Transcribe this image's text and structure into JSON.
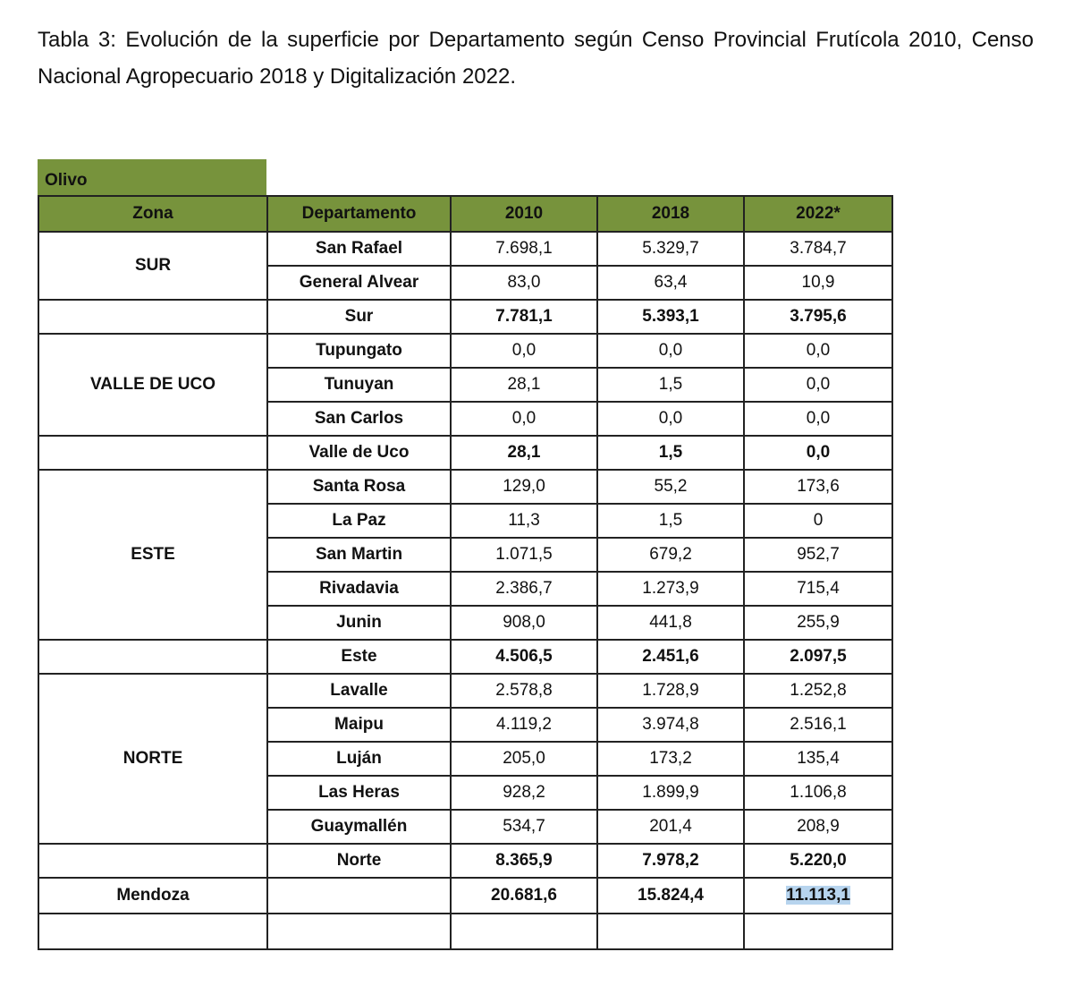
{
  "title": "Tabla 3: Evolución de la superficie por Departamento según Censo Provincial Frutícola 2010, Censo Nacional Agropecuario 2018 y Digitalización 2022.",
  "table": {
    "label": "Olivo",
    "headers": [
      "Zona",
      "Departamento",
      "2010",
      "2018",
      "2022*"
    ],
    "zones": [
      {
        "name": "SUR",
        "rows": [
          [
            "San Rafael",
            "7.698,1",
            "5.329,7",
            "3.784,7"
          ],
          [
            "General Alvear",
            "83,0",
            "63,4",
            "10,9"
          ]
        ],
        "subtotal": [
          "Sur",
          "7.781,1",
          "5.393,1",
          "3.795,6"
        ]
      },
      {
        "name": "VALLE DE UCO",
        "rows": [
          [
            "Tupungato",
            "0,0",
            "0,0",
            "0,0"
          ],
          [
            "Tunuyan",
            "28,1",
            "1,5",
            "0,0"
          ],
          [
            "San Carlos",
            "0,0",
            "0,0",
            "0,0"
          ]
        ],
        "subtotal": [
          "Valle de Uco",
          "28,1",
          "1,5",
          "0,0"
        ]
      },
      {
        "name": "ESTE",
        "rows": [
          [
            "Santa Rosa",
            "129,0",
            "55,2",
            "173,6"
          ],
          [
            "La Paz",
            "11,3",
            "1,5",
            "0"
          ],
          [
            "San Martin",
            "1.071,5",
            "679,2",
            "952,7"
          ],
          [
            "Rivadavia",
            "2.386,7",
            "1.273,9",
            "715,4"
          ],
          [
            "Junin",
            "908,0",
            "441,8",
            "255,9"
          ]
        ],
        "subtotal": [
          "Este",
          "4.506,5",
          "2.451,6",
          "2.097,5"
        ]
      },
      {
        "name": "NORTE",
        "rows": [
          [
            "Lavalle",
            "2.578,8",
            "1.728,9",
            "1.252,8"
          ],
          [
            "Maipu",
            "4.119,2",
            "3.974,8",
            "2.516,1"
          ],
          [
            "Luján",
            "205,0",
            "173,2",
            "135,4"
          ],
          [
            "Las Heras",
            "928,2",
            "1.899,9",
            "1.106,8"
          ],
          [
            "Guaymallén",
            "534,7",
            "201,4",
            "208,9"
          ]
        ],
        "subtotal": [
          "Norte",
          "8.365,9",
          "7.978,2",
          "5.220,0"
        ]
      }
    ],
    "total": {
      "name": "Mendoza",
      "values": [
        "20.681,6",
        "15.824,4",
        "11.113,1"
      ]
    }
  }
}
